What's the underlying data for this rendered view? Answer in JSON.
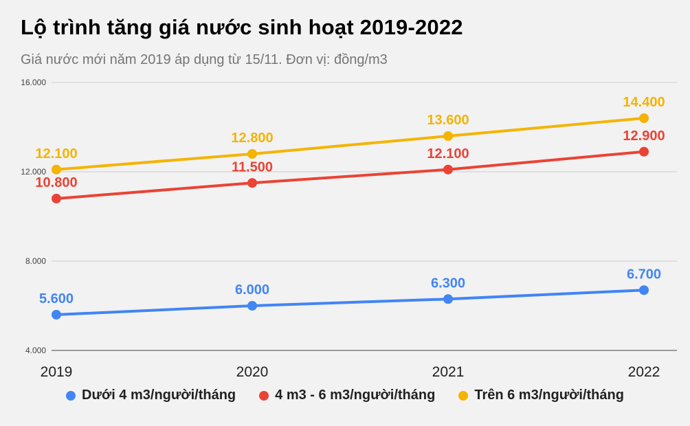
{
  "header": {
    "title": "Lộ trình tăng giá nước sinh hoạt 2019-2022",
    "subtitle": "Giá nước mới năm 2019 áp dụng từ 15/11. Đơn vị: đồng/m3"
  },
  "chart_data": {
    "type": "line",
    "title": "Lộ trình tăng giá nước sinh hoạt 2019-2022",
    "subtitle": "Giá nước mới năm 2019 áp dụng từ 15/11. Đơn vị: đồng/m3",
    "categories": [
      "2019",
      "2020",
      "2021",
      "2022"
    ],
    "series": [
      {
        "name": "Dưới 4 m3/người/tháng",
        "color": "#4285f4",
        "values": [
          5600,
          6000,
          6300,
          6700
        ],
        "labels": [
          "5.600",
          "6.000",
          "6.300",
          "6.700"
        ]
      },
      {
        "name": "4 m3 - 6 m3/người/tháng",
        "color": "#ea4335",
        "values": [
          10800,
          11500,
          12100,
          12900
        ],
        "labels": [
          "10.800",
          "11.500",
          "12.100",
          "12.900"
        ]
      },
      {
        "name": "Trên 6 m3/người/tháng",
        "color": "#f4b400",
        "values": [
          12100,
          12800,
          13600,
          14400
        ],
        "labels": [
          "12.100",
          "12.800",
          "13.600",
          "14.400"
        ]
      }
    ],
    "xlabel": "",
    "ylabel": "",
    "ylim": [
      4000,
      16000
    ],
    "y_ticks": [
      4000,
      8000,
      12000,
      16000
    ],
    "y_tick_labels": [
      "4.000",
      "8.000",
      "12.000",
      "16.000"
    ],
    "grid": true,
    "legend_position": "bottom"
  }
}
